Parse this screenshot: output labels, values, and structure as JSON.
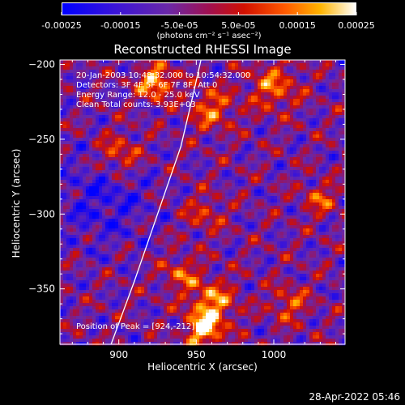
{
  "colorbar": {
    "tick_labels": [
      "-0.00025",
      "-0.00015",
      "-5.0e-05",
      "5.0e-05",
      "0.00015",
      "0.00025"
    ],
    "units": "(photons cm⁻² s⁻¹ asec⁻²)",
    "range": [
      -0.00025,
      0.00025
    ]
  },
  "plot": {
    "title": "Reconstructed RHESSI Image",
    "xlabel": "Heliocentric X (arcsec)",
    "ylabel": "Heliocentric Y (arcsec)"
  },
  "annotations": [
    "20-Jan-2003 10:48:32.000 to 10:54:32.000",
    "Detectors: 3F 4F 5F 6F 7F 8F, Att 0",
    "Energy Range: 12.0 - 25.0 keV",
    "Clean     Total counts: 3.93E+03"
  ],
  "peak_label": "Position of Peak = [924,-212]",
  "timestamp": "28-Apr-2022 05:46",
  "chart_data": {
    "type": "heatmap",
    "title": "Reconstructed RHESSI Image",
    "xlabel": "Heliocentric X (arcsec)",
    "ylabel": "Heliocentric Y (arcsec)",
    "xlim": [
      862,
      1046
    ],
    "ylim": [
      -387,
      -197
    ],
    "x_ticks": [
      900,
      950,
      1000
    ],
    "y_ticks": [
      -200,
      -250,
      -300,
      -350
    ],
    "colorbar_range": [
      -0.00025,
      0.00025
    ],
    "peak_position": [
      924,
      -212
    ],
    "limb_curve": [
      [
        895,
        -387
      ],
      [
        910,
        -345
      ],
      [
        925,
        -300
      ],
      [
        940,
        -255
      ],
      [
        948,
        -220
      ],
      [
        953,
        -197
      ]
    ]
  }
}
